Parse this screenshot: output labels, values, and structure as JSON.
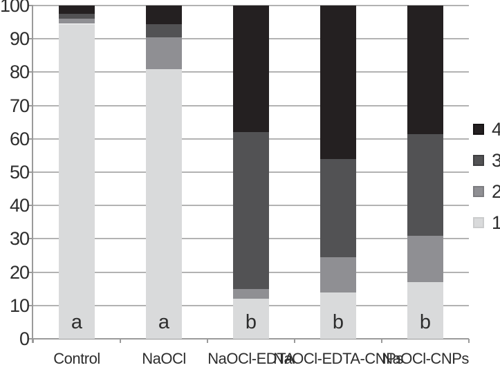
{
  "chart_data": {
    "type": "bar",
    "subtype": "stacked-vertical",
    "title": "",
    "xlabel": "",
    "ylabel": "",
    "ylim": [
      0,
      100
    ],
    "yticks": [
      0,
      10,
      20,
      30,
      40,
      50,
      60,
      70,
      80,
      90,
      100
    ],
    "grid": true,
    "legend_position": "right",
    "legend_order": [
      "4",
      "3",
      "2",
      "1"
    ],
    "categories": [
      "Control",
      "NaOCl",
      "NaOCl-EDTA",
      "NaOCl-EDTA-CNPs",
      "NaOCl-CNPs"
    ],
    "group_labels": [
      "a",
      "a",
      "b",
      "b",
      "b"
    ],
    "series": [
      {
        "name": "1",
        "color": "#d9dadb",
        "swatch_border": "#cbcccd",
        "values": [
          94.5,
          81,
          12,
          14,
          17
        ]
      },
      {
        "name": "2",
        "color": "#8f8f93",
        "swatch_border": "#7c7c80",
        "values": [
          1.5,
          9.5,
          3,
          10.5,
          14
        ]
      },
      {
        "name": "3",
        "color": "#525254",
        "swatch_border": "#3e3e40",
        "values": [
          1.5,
          4,
          47,
          29.5,
          30.5
        ]
      },
      {
        "name": "4",
        "color": "#242021",
        "swatch_border": "#161314",
        "values": [
          2.5,
          5.5,
          38,
          46,
          38.5
        ]
      }
    ]
  },
  "colors": {
    "background": "#ffffff",
    "gridline": "#b2b2b2",
    "axis": "#9a9a9a",
    "text": "#2d2d2d"
  }
}
